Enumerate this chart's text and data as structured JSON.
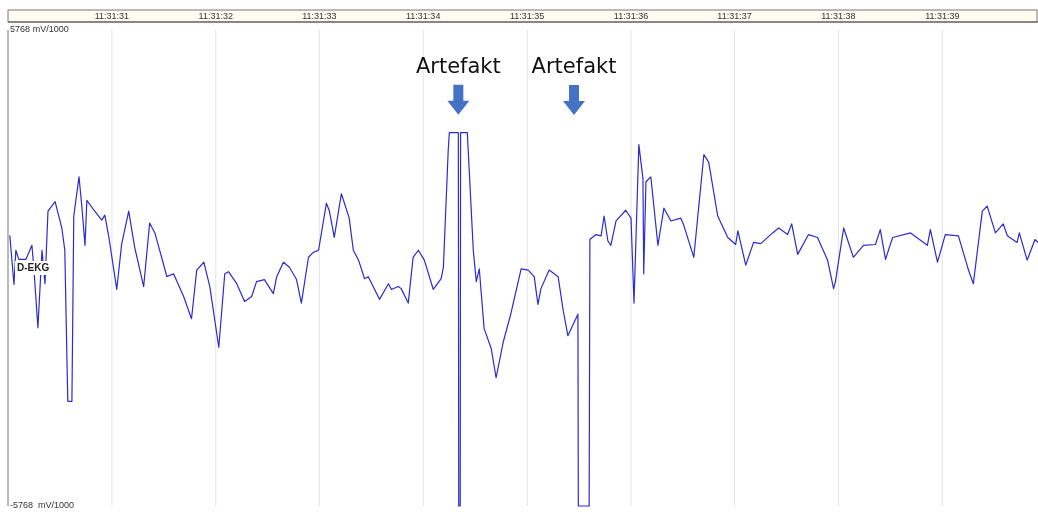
{
  "chart_data": {
    "type": "line",
    "ylabel": "D-EKG",
    "grid": "x",
    "xlim": [
      11.525,
      11.527756
    ],
    "xticks": [
      {
        "value": 11.525278,
        "label": "11:31:31"
      },
      {
        "value": 11.525556,
        "label": "11:31:32"
      },
      {
        "value": 11.525833,
        "label": "11:31:33"
      },
      {
        "value": 11.526111,
        "label": "11:31:34"
      },
      {
        "value": 11.526389,
        "label": "11:31:35"
      },
      {
        "value": 11.526667,
        "label": "11:31:36"
      },
      {
        "value": 11.526944,
        "label": "11:31:37"
      },
      {
        "value": 11.527222,
        "label": "11:31:38"
      },
      {
        "value": 11.5275,
        "label": "11:31:39"
      }
    ],
    "ylim": [
      -5768,
      5768
    ],
    "yticks": [
      5768,
      -5768
    ],
    "annotations": [
      {
        "text": "Artefakt",
        "x": 11.526205,
        "y": 3280
      },
      "Artefakt",
      "mV/1000",
      "mV/1000"
    ],
    "x": [
      11.525005,
      11.525016,
      11.525021,
      11.525029,
      11.525048,
      11.525064,
      11.525069,
      11.52508,
      11.525091,
      11.525099,
      11.525107,
      11.525126,
      11.525144,
      11.525152,
      11.52516,
      11.525171,
      11.525176,
      11.52519,
      11.525198,
      11.525206,
      11.525211,
      11.52523,
      11.525251,
      11.525259,
      11.52527,
      11.525291,
      11.525304,
      11.525323,
      11.525339,
      11.525363,
      11.525379,
      11.525393,
      11.525411,
      11.525425,
      11.525443,
      11.52547,
      11.525491,
      11.525505,
      11.525524,
      11.52554,
      11.525564,
      11.52558,
      11.52559,
      11.525612,
      11.525633,
      11.525652,
      11.525665,
      11.525686,
      11.52571,
      11.525719,
      11.525737,
      11.525753,
      11.525772,
      11.525785,
      11.525804,
      11.525817,
      11.525831,
      11.525852,
      11.52586,
      11.525873,
      11.525892,
      11.525913,
      11.525924,
      11.525938,
      11.525954,
      11.525964,
      11.525994,
      11.526018,
      11.526026,
      11.526044,
      11.526052,
      11.526071,
      11.526084,
      11.526098,
      11.526114,
      11.526138,
      11.526159,
      11.526165,
      11.526178,
      11.526181,
      11.526205,
      11.526206,
      11.52621,
      11.526211,
      11.526229,
      11.526245,
      11.526253,
      11.526261,
      11.526274,
      11.526293,
      11.526306,
      11.526325,
      11.526346,
      11.526373,
      11.526392,
      11.526408,
      11.526418,
      11.526426,
      11.526448,
      11.526472,
      11.526485,
      11.526498,
      11.526525,
      11.526526,
      11.526555,
      11.526557,
      11.526573,
      11.526587,
      11.526595,
      11.526605,
      11.526613,
      11.526627,
      11.526653,
      11.526667,
      11.526675,
      11.526688,
      11.526699,
      11.526701,
      11.526707,
      11.52672,
      11.526739,
      11.526755,
      11.526774,
      11.5268,
      11.526808,
      11.526835,
      11.526862,
      11.526875,
      11.526899,
      11.526926,
      11.526947,
      11.526953,
      11.526974,
      11.526995,
      11.527014,
      11.527046,
      11.527062,
      11.527086,
      11.527097,
      11.527113,
      11.527142,
      11.527166,
      11.527193,
      11.527209,
      11.527214,
      11.527236,
      11.527262,
      11.527289,
      11.527321,
      11.527334,
      11.527348,
      11.527367,
      11.527415,
      11.52746,
      11.527468,
      11.527487,
      11.527508,
      11.527543,
      11.52757,
      11.527583,
      11.527607,
      11.52762,
      11.527642,
      11.527663,
      11.527674,
      11.5277,
      11.527706,
      11.527727,
      11.527748,
      11.527756
    ],
    "series": [
      {
        "color": "#2b2bd0",
        "values": [
          780,
          -400,
          430,
          210,
          210,
          550,
          20,
          -1450,
          430,
          -380,
          1380,
          1610,
          970,
          430,
          -3230,
          -3230,
          1260,
          2210,
          1450,
          550,
          1640,
          1400,
          1160,
          1280,
          740,
          -520,
          570,
          1380,
          500,
          -450,
          1090,
          850,
          260,
          -210,
          -140,
          -690,
          -1230,
          -50,
          140,
          -450,
          -1920,
          -140,
          -90,
          -380,
          -810,
          -690,
          -330,
          -280,
          -620,
          -210,
          140,
          20,
          -280,
          -850,
          260,
          380,
          430,
          1570,
          1380,
          740,
          1800,
          1210,
          430,
          190,
          -260,
          -210,
          -760,
          -380,
          -520,
          -450,
          -500,
          -850,
          260,
          430,
          190,
          -520,
          -260,
          20,
          2870,
          3280,
          3280,
          -5768,
          -5768,
          3280,
          3280,
          430,
          -330,
          -20,
          -1470,
          -1950,
          -2660,
          -1800,
          -1090,
          -20,
          -50,
          -210,
          -880,
          -500,
          -50,
          -210,
          -1000,
          -1640,
          -1120,
          -5768,
          -5768,
          690,
          810,
          780,
          1260,
          660,
          550,
          1140,
          1400,
          1210,
          -850,
          2990,
          2160,
          -140,
          2090,
          2210,
          550,
          1450,
          1140,
          1210,
          1040,
          260,
          2750,
          2560,
          1260,
          740,
          570,
          900,
          70,
          620,
          590,
          850,
          970,
          810,
          1070,
          330,
          810,
          740,
          190,
          -500,
          -330,
          970,
          260,
          550,
          570,
          930,
          210,
          740,
          850,
          550,
          930,
          140,
          810,
          780,
          -50,
          -380,
          1380,
          1500,
          850,
          1070,
          780,
          620,
          850,
          190,
          690,
          620
        ]
      }
    ]
  }
}
